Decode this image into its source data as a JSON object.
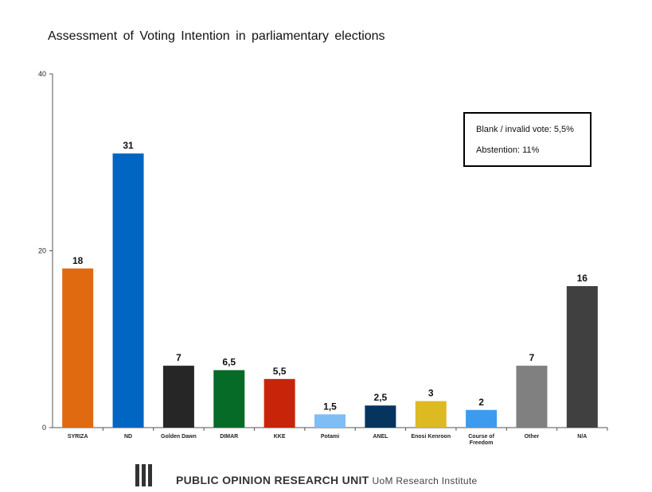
{
  "chart_data": {
    "type": "bar",
    "title": "Assessment  of Voting Intention  in parliamentary  elections",
    "categories": [
      "SYRIZA",
      "ND",
      "Golden Dawn",
      "DIMAR",
      "KKE",
      "Potami",
      "ANEL",
      "Enosi Kenroon",
      "Course of Freedom",
      "Other",
      "N/A"
    ],
    "values": [
      18,
      31,
      7,
      6.5,
      5.5,
      1.5,
      2.5,
      3,
      2,
      7,
      16
    ],
    "value_labels": [
      "18",
      "31",
      "7",
      "6,5",
      "5,5",
      "1,5",
      "2,5",
      "3",
      "2",
      "7",
      "16"
    ],
    "colors": [
      "#E06A10",
      "#0066C2",
      "#262626",
      "#056B26",
      "#C8240A",
      "#7FBDF5",
      "#07345F",
      "#DEBA22",
      "#3D9BEE",
      "#808080",
      "#404040"
    ],
    "ylim": [
      0,
      40
    ],
    "yticks": [
      0,
      20,
      40
    ],
    "xlabel": "",
    "ylabel": ""
  },
  "note": {
    "line1": "Blank  / invalid  vote:  5,5%",
    "line2": "Abstention:  11%"
  },
  "footer": {
    "org": "PUBLIC OPINION RESEARCH UNIT",
    "institute": "UoM Research Institute"
  }
}
